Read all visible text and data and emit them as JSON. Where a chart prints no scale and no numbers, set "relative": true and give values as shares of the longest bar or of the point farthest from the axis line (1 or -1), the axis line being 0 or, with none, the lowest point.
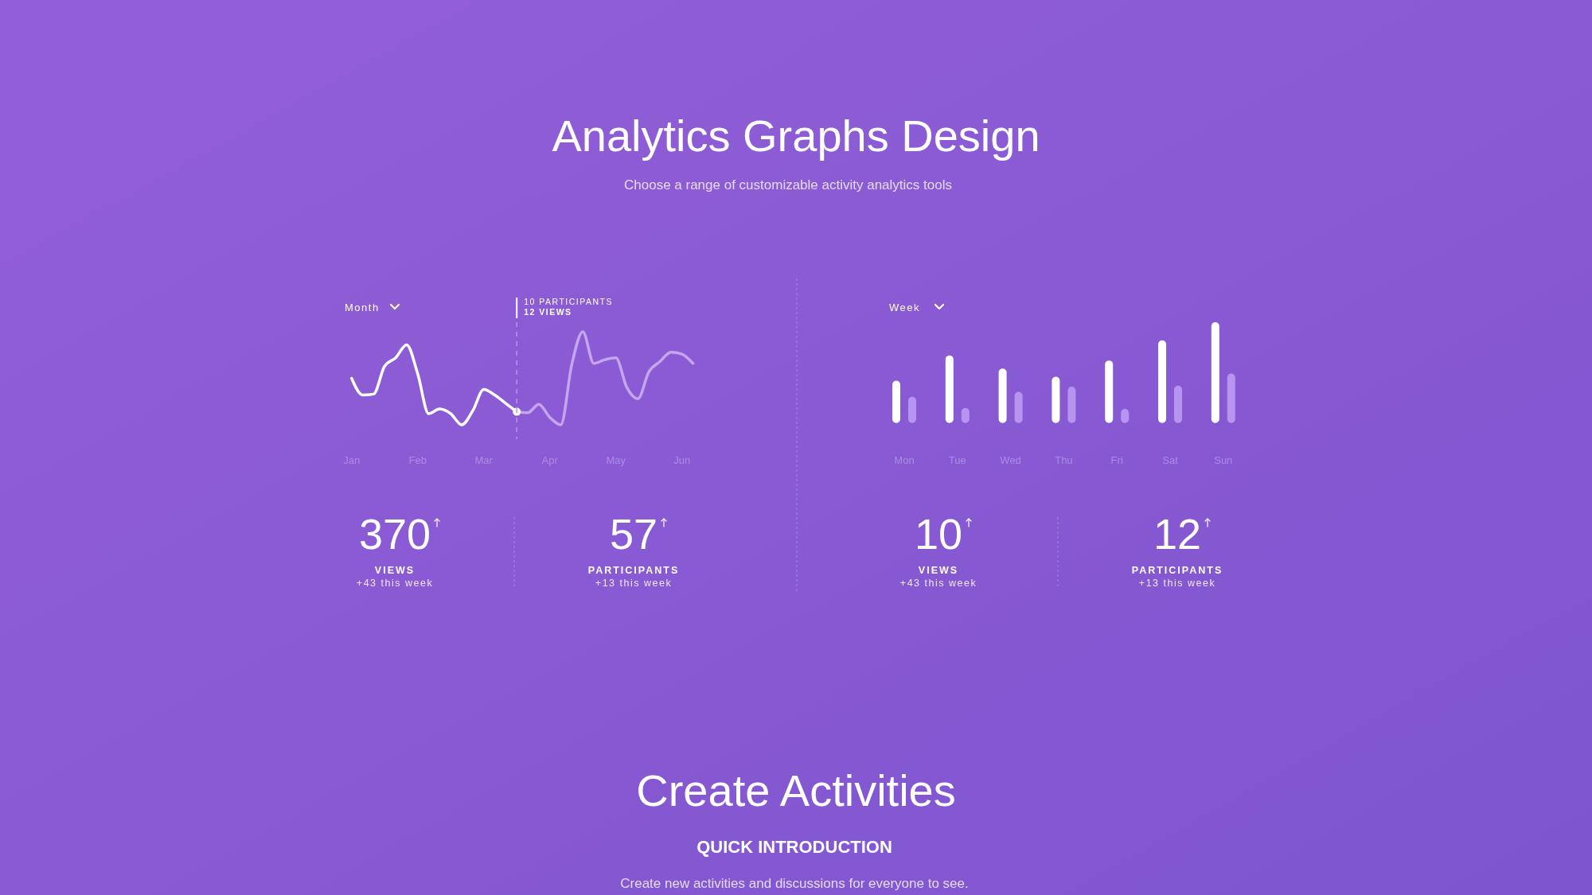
{
  "chart_data": [
    {
      "type": "other",
      "title": "Analytics Graphs Design",
      "subtitle": "Choose a range of customizable activity analytics tools"
    },
    {
      "type": "line",
      "relative": true,
      "tick_labels": "x",
      "legend": false,
      "categories": [
        "Jan",
        null,
        null,
        null,
        null,
        null,
        "Feb",
        null,
        null,
        null,
        null,
        null,
        "Mar",
        null,
        null,
        null,
        null,
        null,
        "Apr",
        null,
        null,
        null,
        null,
        null,
        "May",
        null,
        null,
        null,
        null,
        null,
        "Jun",
        null
      ],
      "series": [
        {
          "color": "#ffffff",
          "values": [
            0.5,
            0.32,
            0.33,
            0.63,
            0.72,
            0.86,
            0.55,
            0.12,
            0.17,
            0.12,
            0,
            0.15,
            0.38,
            0.32,
            0.23,
            0.14,
            null,
            null,
            null,
            null,
            null,
            null,
            null,
            null,
            null,
            null,
            null,
            null,
            null,
            null,
            null,
            null
          ]
        },
        {
          "color": "#c4a6ee",
          "values": [
            null,
            null,
            null,
            null,
            null,
            null,
            null,
            null,
            null,
            null,
            null,
            null,
            null,
            null,
            null,
            0.14,
            0.13,
            0.22,
            0.08,
            0,
            0.65,
            1,
            0.66,
            0.7,
            0.72,
            0.4,
            0.28,
            0.57,
            0.68,
            0.78,
            0.76,
            0.66
          ]
        },
        {
          "type": "scatter",
          "color": "#ffffff",
          "values": [
            null,
            null,
            null,
            null,
            null,
            null,
            null,
            null,
            null,
            null,
            null,
            null,
            null,
            null,
            null,
            0.14,
            null,
            null,
            null,
            null,
            null,
            null,
            null,
            null,
            null,
            null,
            null,
            null,
            null,
            null,
            null,
            null
          ]
        }
      ],
      "annotations": [
        "Month",
        "10 PARTICIPANTS",
        "12 VIEWS"
      ]
    },
    {
      "type": "bar",
      "relative": true,
      "tick_labels": "x",
      "legend": false,
      "categories": [
        "Mon",
        "Tue",
        "Wed",
        "Thu",
        "Fri",
        "Sat",
        "Sun"
      ],
      "series": [
        {
          "color": "#ffffff",
          "values": [
            0.42,
            0.67,
            0.54,
            0.46,
            0.62,
            0.82,
            1
          ]
        },
        {
          "color": "#b794f0",
          "values": [
            0.26,
            0.15,
            0.31,
            0.36,
            0.14,
            0.37,
            0.49
          ]
        }
      ],
      "annotations": [
        "Week"
      ]
    },
    {
      "type": "other",
      "annotations": [
        "370",
        "VIEWS",
        "+43 this week",
        "57",
        "PARTICIPANTS",
        "+13 this week"
      ]
    },
    {
      "type": "other",
      "annotations": [
        "10",
        "VIEWS",
        "+43 this week",
        "12",
        "PARTICIPANTS",
        "+13 this week"
      ]
    },
    {
      "type": "other",
      "title": "Create Activities",
      "subtitle": "QUICK INTRODUCTION",
      "annotations": [
        "Create new activities and discussions for everyone to see."
      ]
    }
  ]
}
